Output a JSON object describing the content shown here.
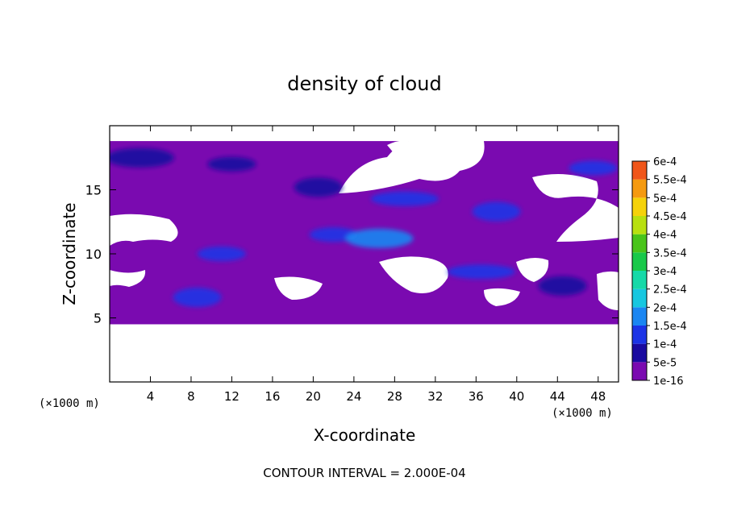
{
  "chart_data": {
    "type": "heatmap",
    "title": "density of cloud",
    "xlabel": "X-coordinate",
    "ylabel": "Z-coordinate",
    "x_unit": "(×1000 m)",
    "y_unit": "(×1000 m)",
    "footer": "CONTOUR INTERVAL = 2.000E-04",
    "xlim": [
      0,
      50
    ],
    "ylim": [
      0,
      20
    ],
    "x_ticks": [
      4,
      8,
      12,
      16,
      20,
      24,
      28,
      32,
      36,
      40,
      44,
      48
    ],
    "y_ticks": [
      5,
      10,
      15
    ],
    "colorbar": {
      "levels": [
        "1e-16",
        "5e-5",
        "1e-4",
        "1.5e-4",
        "2e-4",
        "2.5e-4",
        "3e-4",
        "3.5e-4",
        "4e-4",
        "4.5e-4",
        "5e-4",
        "5.5e-4",
        "6e-4"
      ],
      "colors": [
        "#7a0ab0",
        "#1a0aa0",
        "#1c34e6",
        "#1b86f2",
        "#17c7e0",
        "#16d9a8",
        "#19c94a",
        "#49c41a",
        "#b8e010",
        "#f5d20a",
        "#f59a10",
        "#f0561a",
        "#f23a2a",
        "#f88a8a"
      ]
    },
    "cloud_layer": {
      "z_bottom": 4.5,
      "z_top": 18.8,
      "base_level": "1e-16"
    },
    "cloud_cores": [
      {
        "x": 3.0,
        "z": 17.5,
        "level": "5e-5"
      },
      {
        "x": 12.0,
        "z": 17.0,
        "level": "5e-5"
      },
      {
        "x": 20.5,
        "z": 15.2,
        "level": "5e-5"
      },
      {
        "x": 29.0,
        "z": 14.3,
        "level": "1e-4"
      },
      {
        "x": 38.0,
        "z": 13.3,
        "level": "1e-4"
      },
      {
        "x": 22.0,
        "z": 11.5,
        "level": "1e-4"
      },
      {
        "x": 26.5,
        "z": 11.2,
        "level": "1.5e-4"
      },
      {
        "x": 11.0,
        "z": 10.0,
        "level": "1e-4"
      },
      {
        "x": 8.6,
        "z": 6.6,
        "level": "1e-4"
      },
      {
        "x": 36.5,
        "z": 8.6,
        "level": "1e-4"
      },
      {
        "x": 44.5,
        "z": 7.5,
        "level": "5e-5"
      },
      {
        "x": 47.5,
        "z": 16.7,
        "level": "1e-4"
      }
    ]
  }
}
